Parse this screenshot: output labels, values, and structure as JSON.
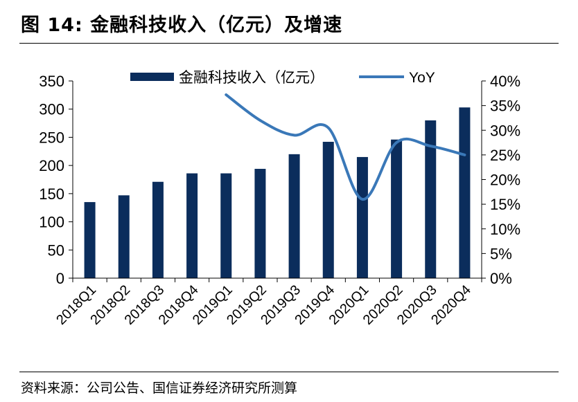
{
  "figure": {
    "title": "图 14:  金融科技收入（亿元）及增速",
    "source": "资料来源：公司公告、国信证券经济研究所测算"
  },
  "colors": {
    "bar": "#0b2d5c",
    "line": "#3a78b8",
    "axis": "#000000"
  },
  "chart_data": {
    "type": "bar",
    "categories": [
      "2018Q1",
      "2018Q2",
      "2018Q3",
      "2018Q4",
      "2019Q1",
      "2019Q2",
      "2019Q3",
      "2019Q4",
      "2020Q1",
      "2020Q2",
      "2020Q3",
      "2020Q4"
    ],
    "series": [
      {
        "name": "金融科技收入（亿元）",
        "type": "bar",
        "axis": "left",
        "values": [
          135,
          147,
          171,
          186,
          186,
          194,
          220,
          242,
          215,
          246,
          280,
          303
        ]
      },
      {
        "name": "YoY",
        "type": "line",
        "axis": "right",
        "values": [
          null,
          null,
          null,
          null,
          0.372,
          0.32,
          0.29,
          0.305,
          0.16,
          0.275,
          0.268,
          0.25
        ]
      }
    ],
    "ylim": [
      0,
      350
    ],
    "yticks": [
      "0",
      "50",
      "100",
      "150",
      "200",
      "250",
      "300",
      "350"
    ],
    "y2lim": [
      0,
      0.4
    ],
    "y2ticks": [
      "0%",
      "5%",
      "10%",
      "15%",
      "20%",
      "25%",
      "30%",
      "35%",
      "40%"
    ],
    "legend": [
      {
        "label": "金融科技收入（亿元）",
        "kind": "bar"
      },
      {
        "label": "YoY",
        "kind": "line"
      }
    ],
    "legend_position": "top"
  }
}
